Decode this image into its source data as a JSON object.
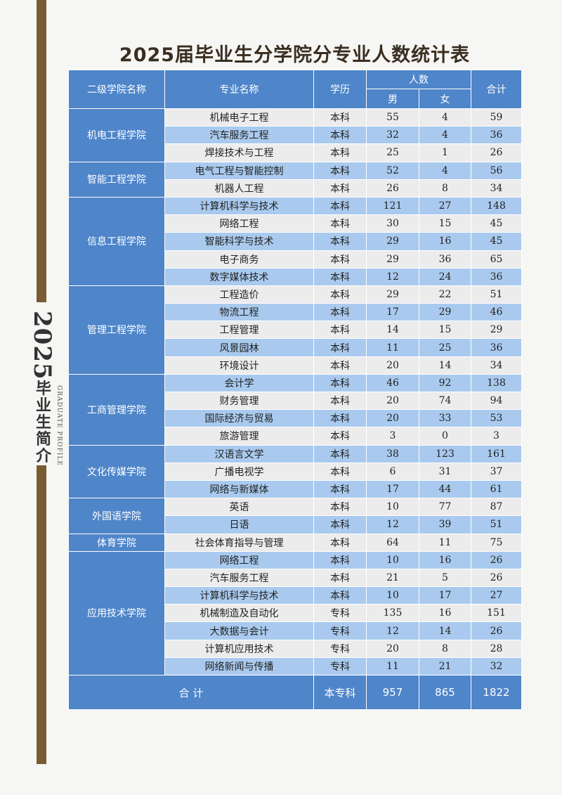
{
  "side": {
    "year": "2025",
    "subtitle": "毕业生简介",
    "english": "GRADUATE PROFILE"
  },
  "title": "2025届毕业生分学院分专业人数统计表",
  "headers": {
    "college": "二级学院名称",
    "major": "专业名称",
    "degree": "学历",
    "count": "人数",
    "male": "男",
    "female": "女",
    "total": "合计"
  },
  "colleges": [
    {
      "name": "机电工程学院",
      "rows": [
        {
          "major": "机械电子工程",
          "degree": "本科",
          "male": "55",
          "female": "4",
          "total": "59"
        },
        {
          "major": "汽车服务工程",
          "degree": "本科",
          "male": "32",
          "female": "4",
          "total": "36"
        },
        {
          "major": "焊接技术与工程",
          "degree": "本科",
          "male": "25",
          "female": "1",
          "total": "26"
        }
      ]
    },
    {
      "name": "智能工程学院",
      "rows": [
        {
          "major": "电气工程与智能控制",
          "degree": "本科",
          "male": "52",
          "female": "4",
          "total": "56"
        },
        {
          "major": "机器人工程",
          "degree": "本科",
          "male": "26",
          "female": "8",
          "total": "34"
        }
      ]
    },
    {
      "name": "信息工程学院",
      "rows": [
        {
          "major": "计算机科学与技术",
          "degree": "本科",
          "male": "121",
          "female": "27",
          "total": "148"
        },
        {
          "major": "网络工程",
          "degree": "本科",
          "male": "30",
          "female": "15",
          "total": "45"
        },
        {
          "major": "智能科学与技术",
          "degree": "本科",
          "male": "29",
          "female": "16",
          "total": "45"
        },
        {
          "major": "电子商务",
          "degree": "本科",
          "male": "29",
          "female": "36",
          "total": "65"
        },
        {
          "major": "数字媒体技术",
          "degree": "本科",
          "male": "12",
          "female": "24",
          "total": "36"
        }
      ]
    },
    {
      "name": "管理工程学院",
      "rows": [
        {
          "major": "工程造价",
          "degree": "本科",
          "male": "29",
          "female": "22",
          "total": "51"
        },
        {
          "major": "物流工程",
          "degree": "本科",
          "male": "17",
          "female": "29",
          "total": "46"
        },
        {
          "major": "工程管理",
          "degree": "本科",
          "male": "14",
          "female": "15",
          "total": "29"
        },
        {
          "major": "风景园林",
          "degree": "本科",
          "male": "11",
          "female": "25",
          "total": "36"
        },
        {
          "major": "环境设计",
          "degree": "本科",
          "male": "20",
          "female": "14",
          "total": "34"
        }
      ]
    },
    {
      "name": "工商管理学院",
      "rows": [
        {
          "major": "会计学",
          "degree": "本科",
          "male": "46",
          "female": "92",
          "total": "138"
        },
        {
          "major": "财务管理",
          "degree": "本科",
          "male": "20",
          "female": "74",
          "total": "94"
        },
        {
          "major": "国际经济与贸易",
          "degree": "本科",
          "male": "20",
          "female": "33",
          "total": "53"
        },
        {
          "major": "旅游管理",
          "degree": "本科",
          "male": "3",
          "female": "0",
          "total": "3"
        }
      ]
    },
    {
      "name": "文化传媒学院",
      "rows": [
        {
          "major": "汉语言文学",
          "degree": "本科",
          "male": "38",
          "female": "123",
          "total": "161"
        },
        {
          "major": "广播电视学",
          "degree": "本科",
          "male": "6",
          "female": "31",
          "total": "37"
        },
        {
          "major": "网络与新媒体",
          "degree": "本科",
          "male": "17",
          "female": "44",
          "total": "61"
        }
      ]
    },
    {
      "name": "外国语学院",
      "rows": [
        {
          "major": "英语",
          "degree": "本科",
          "male": "10",
          "female": "77",
          "total": "87"
        },
        {
          "major": "日语",
          "degree": "本科",
          "male": "12",
          "female": "39",
          "total": "51"
        }
      ]
    },
    {
      "name": "体育学院",
      "rows": [
        {
          "major": "社会体育指导与管理",
          "degree": "本科",
          "male": "64",
          "female": "11",
          "total": "75"
        }
      ]
    },
    {
      "name": "应用技术学院",
      "rows": [
        {
          "major": "网络工程",
          "degree": "本科",
          "male": "10",
          "female": "16",
          "total": "26"
        },
        {
          "major": "汽车服务工程",
          "degree": "本科",
          "male": "21",
          "female": "5",
          "total": "26"
        },
        {
          "major": "计算机科学与技术",
          "degree": "本科",
          "male": "10",
          "female": "17",
          "total": "27"
        },
        {
          "major": "机械制造及自动化",
          "degree": "专科",
          "male": "135",
          "female": "16",
          "total": "151"
        },
        {
          "major": "大数据与会计",
          "degree": "专科",
          "male": "12",
          "female": "14",
          "total": "26"
        },
        {
          "major": "计算机应用技术",
          "degree": "专科",
          "male": "20",
          "female": "8",
          "total": "28"
        },
        {
          "major": "网络新闻与传播",
          "degree": "专科",
          "male": "11",
          "female": "21",
          "total": "32"
        }
      ]
    }
  ],
  "summary": {
    "label": "合 计",
    "degree": "本专科",
    "male": "957",
    "female": "865",
    "total": "1822"
  },
  "colors": {
    "header_blue": "#4f85c9",
    "row_light_blue": "#a9caee",
    "row_gray": "#ececec",
    "side_brown": "#7a5c33"
  }
}
